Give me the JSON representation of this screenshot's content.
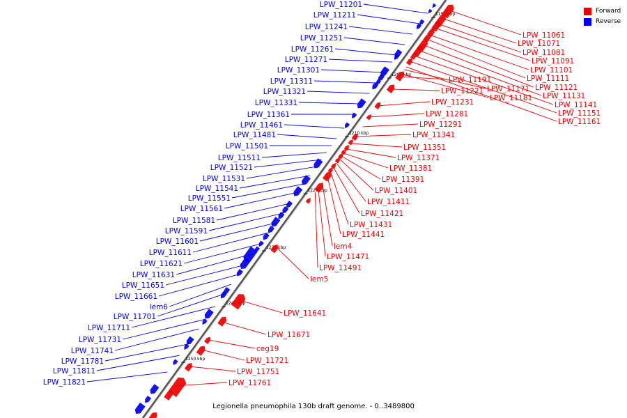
{
  "caption": "Legionella pneumophila 130b draft genome. - 0..3489800",
  "legend": [
    {
      "label": "Forward",
      "color": "#ee0000"
    },
    {
      "label": "Reverse",
      "color": "#0000ee"
    }
  ],
  "colors": {
    "forward": "#ee0000",
    "reverse": "#0000ee",
    "backbone": "#555555"
  },
  "ticks": [
    "1190 kbp",
    "1200 kbp",
    "1210 kbp",
    "1220 kbp",
    "1230 kbp",
    "1240 kbp",
    "1250 kbp"
  ],
  "forward_genes": [
    {
      "label": "LPW_11061"
    },
    {
      "label": "LPW_11071"
    },
    {
      "label": "LPW_11081"
    },
    {
      "label": "LPW_11091"
    },
    {
      "label": "LPW_11101"
    },
    {
      "label": "LPW_11111"
    },
    {
      "label": "LPW_11121"
    },
    {
      "label": "LPW_11131"
    },
    {
      "label": "LPW_11141"
    },
    {
      "label": "LPW_11151"
    },
    {
      "label": "LPW_11161"
    },
    {
      "label": "LPW_11171"
    },
    {
      "label": "LPW_11181"
    },
    {
      "label": "LPW_11191"
    },
    {
      "label": "LPW_11221"
    },
    {
      "label": "LPW_11231"
    },
    {
      "label": "LPW_11281"
    },
    {
      "label": "LPW_11291"
    },
    {
      "label": "LPW_11341"
    },
    {
      "label": "LPW_11351"
    },
    {
      "label": "LPW_11371"
    },
    {
      "label": "LPW_11381"
    },
    {
      "label": "LPW_11391"
    },
    {
      "label": "LPW_11401"
    },
    {
      "label": "LPW_11411"
    },
    {
      "label": "LPW_11421"
    },
    {
      "label": "LPW_11431"
    },
    {
      "label": "LPW_11441"
    },
    {
      "label": "lem4"
    },
    {
      "label": "LPW_11471"
    },
    {
      "label": "LPW_11491"
    },
    {
      "label": "lem5"
    },
    {
      "label": "LPW_11641"
    },
    {
      "label": "LPW_11671"
    },
    {
      "label": "ceg19"
    },
    {
      "label": "LPW_11721"
    },
    {
      "label": "LPW_11751"
    },
    {
      "label": "LPW_11761"
    }
  ],
  "reverse_genes": [
    {
      "label": "LPW_11201"
    },
    {
      "label": "LPW_11211"
    },
    {
      "label": "LPW_11241"
    },
    {
      "label": "LPW_11251"
    },
    {
      "label": "LPW_11261"
    },
    {
      "label": "LPW_11271"
    },
    {
      "label": "LPW_11301"
    },
    {
      "label": "LPW_11311"
    },
    {
      "label": "LPW_11321"
    },
    {
      "label": "LPW_11331"
    },
    {
      "label": "LPW_11361"
    },
    {
      "label": "LPW_11461"
    },
    {
      "label": "LPW_11481"
    },
    {
      "label": "LPW_11501"
    },
    {
      "label": "LPW_11511"
    },
    {
      "label": "LPW_11521"
    },
    {
      "label": "LPW_11531"
    },
    {
      "label": "LPW_11541"
    },
    {
      "label": "LPW_11551"
    },
    {
      "label": "LPW_11561"
    },
    {
      "label": "LPW_11581"
    },
    {
      "label": "LPW_11591"
    },
    {
      "label": "LPW_11601"
    },
    {
      "label": "LPW_11611"
    },
    {
      "label": "LPW_11621"
    },
    {
      "label": "LPW_11631"
    },
    {
      "label": "LPW_11651"
    },
    {
      "label": "LPW_11661"
    },
    {
      "label": "lem6"
    },
    {
      "label": "LPW_11701"
    },
    {
      "label": "LPW_11711"
    },
    {
      "label": "LPW_11731"
    },
    {
      "label": "LPW_11741"
    },
    {
      "label": "LPW_11781"
    },
    {
      "label": "LPW_11811"
    },
    {
      "label": "LPW_11821"
    }
  ]
}
